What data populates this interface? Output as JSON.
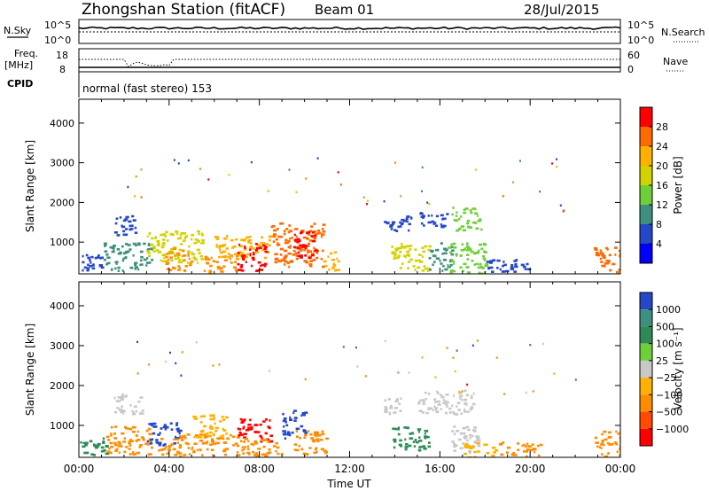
{
  "header": {
    "station": "Zhongshan Station (fitACF)",
    "beam": "Beam 01",
    "date": "28/Jul/2015"
  },
  "top_panels": {
    "nsky": {
      "label": "N.Sky",
      "tick_top": "10^5",
      "tick_bottom": "10^0",
      "right_label": "N.Search",
      "right_tick_top": "10^5",
      "right_tick_bottom": "10^0"
    },
    "freq": {
      "label_line1": "Freq.",
      "label_line2": "[MHz]",
      "tick_top": "18",
      "tick_bottom": "8",
      "right_label": "Nave",
      "right_tick_top": "60",
      "right_tick_bottom": "0"
    },
    "cpid": {
      "label": "CPID",
      "text": "normal (fast stereo) 153"
    }
  },
  "colors": {
    "red": "#ff0000",
    "orange_red": "#ff4a00",
    "orange": "#ff8c00",
    "light_orange": "#ffb000",
    "yellow": "#d2d200",
    "green": "#6fcf3a",
    "dark_green": "#2e8b57",
    "teal": "#3f8f7f",
    "blue": "#2548c8",
    "deep_blue": "#0000ff",
    "gray": "#c8c8c8"
  },
  "chart_data": [
    {
      "type": "heatmap",
      "parameter": "power",
      "xlabel": "",
      "ylabel": "Slant Range [km]",
      "x_ticks": [
        "00:00",
        "04:00",
        "08:00",
        "12:00",
        "16:00",
        "20:00",
        "00:00"
      ],
      "xlim_hours": [
        0,
        24
      ],
      "y_ticks": [
        1000,
        2000,
        3000,
        4000
      ],
      "ylim": [
        200,
        4600
      ],
      "colorbar": {
        "label": "Power [dB]",
        "ticks": [
          "4",
          "8",
          "12",
          "16",
          "20",
          "24",
          "28"
        ],
        "colors": [
          "#0000ff",
          "#2548c8",
          "#3f8f7f",
          "#6fcf3a",
          "#d2d200",
          "#ffb000",
          "#ff6a00",
          "#ff0000"
        ]
      },
      "regions": [
        {
          "t0": 0.0,
          "t1": 1.0,
          "r0": 250,
          "r1": 800,
          "color": "#2548c8"
        },
        {
          "t0": 1.0,
          "t1": 3.2,
          "r0": 300,
          "r1": 1000,
          "color": "#3f8f7f"
        },
        {
          "t0": 1.5,
          "t1": 2.5,
          "r0": 1200,
          "r1": 1700,
          "color": "#2548c8"
        },
        {
          "t0": 3.0,
          "t1": 5.5,
          "r0": 500,
          "r1": 1300,
          "color": "#d2d200"
        },
        {
          "t0": 3.8,
          "t1": 5.0,
          "r0": 300,
          "r1": 900,
          "color": "#ff8c00"
        },
        {
          "t0": 5.5,
          "t1": 7.0,
          "r0": 250,
          "r1": 700,
          "color": "#ff8c00"
        },
        {
          "t0": 6.0,
          "t1": 8.5,
          "r0": 600,
          "r1": 1200,
          "color": "#ffb000"
        },
        {
          "t0": 7.0,
          "t1": 8.3,
          "r0": 300,
          "r1": 1000,
          "color": "#ff0000"
        },
        {
          "t0": 8.5,
          "t1": 10.8,
          "r0": 400,
          "r1": 1500,
          "color": "#ff6a00"
        },
        {
          "t0": 9.5,
          "t1": 10.5,
          "r0": 600,
          "r1": 1300,
          "color": "#ff0000"
        },
        {
          "t0": 10.8,
          "t1": 11.5,
          "r0": 300,
          "r1": 800,
          "color": "#ffb000"
        },
        {
          "t0": 13.5,
          "t1": 14.8,
          "r0": 1300,
          "r1": 1700,
          "color": "#2548c8"
        },
        {
          "t0": 13.8,
          "t1": 15.5,
          "r0": 300,
          "r1": 1000,
          "color": "#d2d200"
        },
        {
          "t0": 15.0,
          "t1": 16.3,
          "r0": 1400,
          "r1": 1800,
          "color": "#2548c8"
        },
        {
          "t0": 15.5,
          "t1": 16.5,
          "r0": 300,
          "r1": 1000,
          "color": "#3f8f7f"
        },
        {
          "t0": 16.5,
          "t1": 17.8,
          "r0": 1300,
          "r1": 1900,
          "color": "#6fcf3a"
        },
        {
          "t0": 16.3,
          "t1": 18.0,
          "r0": 200,
          "r1": 1000,
          "color": "#6fcf3a"
        },
        {
          "t0": 18.0,
          "t1": 20.0,
          "r0": 250,
          "r1": 600,
          "color": "#2548c8"
        },
        {
          "t0": 22.8,
          "t1": 24.0,
          "r0": 250,
          "r1": 900,
          "color": "#ff6a00"
        }
      ]
    },
    {
      "type": "heatmap",
      "parameter": "velocity",
      "xlabel": "Time UT",
      "ylabel": "Slant Range [km]",
      "x_ticks": [
        "00:00",
        "04:00",
        "08:00",
        "12:00",
        "16:00",
        "20:00",
        "00:00"
      ],
      "xlim_hours": [
        0,
        24
      ],
      "y_ticks": [
        1000,
        2000,
        3000,
        4000
      ],
      "ylim": [
        200,
        4600
      ],
      "colorbar": {
        "label": "Velocity [m s⁻¹]",
        "ticks": [
          "1000",
          "500",
          "100",
          "25",
          "−25",
          "−100",
          "−500",
          "−1000"
        ],
        "colors": [
          "#2548c8",
          "#3f8f7f",
          "#2e8b57",
          "#6fcf3a",
          "#c8c8c8",
          "#ffb000",
          "#ff8c00",
          "#ff4a00",
          "#ff0000"
        ]
      },
      "regions": [
        {
          "t0": 0.0,
          "t1": 1.2,
          "r0": 250,
          "r1": 700,
          "color": "#2e8b57"
        },
        {
          "t0": 1.2,
          "t1": 3.2,
          "r0": 300,
          "r1": 1000,
          "color": "#ff8c00"
        },
        {
          "t0": 1.5,
          "t1": 2.8,
          "r0": 1300,
          "r1": 1800,
          "color": "#c8c8c8"
        },
        {
          "t0": 3.0,
          "t1": 4.5,
          "r0": 500,
          "r1": 1100,
          "color": "#2548c8"
        },
        {
          "t0": 3.5,
          "t1": 7.0,
          "r0": 250,
          "r1": 800,
          "color": "#ff8c00"
        },
        {
          "t0": 5.0,
          "t1": 6.5,
          "r0": 700,
          "r1": 1300,
          "color": "#ffb000"
        },
        {
          "t0": 7.0,
          "t1": 8.5,
          "r0": 600,
          "r1": 1200,
          "color": "#ff0000"
        },
        {
          "t0": 7.0,
          "t1": 9.0,
          "r0": 250,
          "r1": 700,
          "color": "#ff8c00"
        },
        {
          "t0": 9.0,
          "t1": 10.0,
          "r0": 700,
          "r1": 1400,
          "color": "#2548c8"
        },
        {
          "t0": 9.5,
          "t1": 11.0,
          "r0": 300,
          "r1": 900,
          "color": "#ff8c00"
        },
        {
          "t0": 13.5,
          "t1": 14.5,
          "r0": 1300,
          "r1": 1700,
          "color": "#c8c8c8"
        },
        {
          "t0": 13.8,
          "t1": 15.5,
          "r0": 400,
          "r1": 1000,
          "color": "#2e8b57"
        },
        {
          "t0": 15.0,
          "t1": 17.5,
          "r0": 1300,
          "r1": 1900,
          "color": "#c8c8c8"
        },
        {
          "t0": 16.5,
          "t1": 17.8,
          "r0": 300,
          "r1": 1000,
          "color": "#c8c8c8"
        },
        {
          "t0": 17.0,
          "t1": 18.5,
          "r0": 200,
          "r1": 600,
          "color": "#ffb000"
        },
        {
          "t0": 18.5,
          "t1": 20.5,
          "r0": 250,
          "r1": 600,
          "color": "#ff8c00"
        },
        {
          "t0": 22.8,
          "t1": 24.0,
          "r0": 250,
          "r1": 900,
          "color": "#ff8c00"
        }
      ]
    }
  ]
}
